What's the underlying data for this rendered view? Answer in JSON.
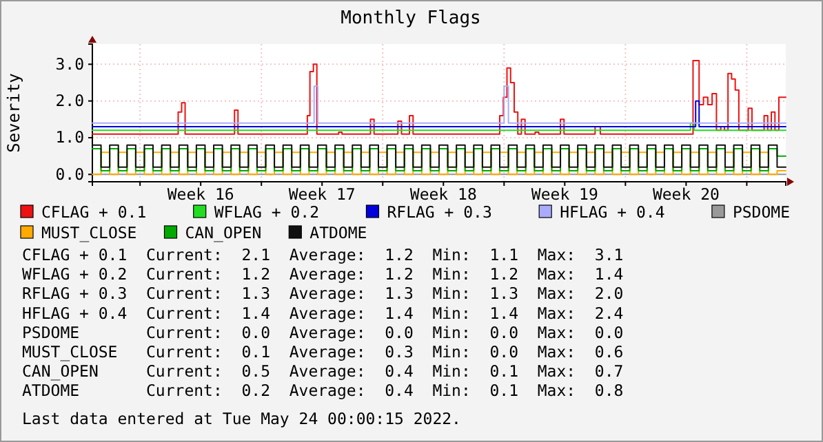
{
  "chart_data": {
    "type": "step",
    "title": "Monthly Flags",
    "ylabel": "Severity",
    "x": [
      "2022-04-15T06:00",
      "2022-04-15T18:00",
      "2022-04-16T06:00",
      "2022-04-16T18:00",
      "2022-04-17T06:00",
      "2022-04-17T18:00",
      "2022-04-18T06:00",
      "2022-04-18T18:00",
      "2022-04-19T06:00",
      "2022-04-19T18:00",
      "2022-04-20T06:00",
      "2022-04-20T18:00",
      "2022-04-21T06:00",
      "2022-04-21T18:00",
      "2022-04-22T06:00",
      "2022-04-22T18:00",
      "2022-04-23T06:00",
      "2022-04-23T18:00",
      "2022-04-24T06:00",
      "2022-04-24T18:00",
      "2022-04-25T06:00",
      "2022-04-25T18:00",
      "2022-04-26T06:00",
      "2022-04-26T18:00",
      "2022-04-27T06:00",
      "2022-04-27T18:00",
      "2022-04-28T06:00",
      "2022-04-28T18:00",
      "2022-04-29T06:00",
      "2022-04-29T18:00",
      "2022-04-30T06:00",
      "2022-04-30T18:00",
      "2022-05-01T06:00",
      "2022-05-01T18:00",
      "2022-05-02T06:00",
      "2022-05-02T18:00",
      "2022-05-03T06:00",
      "2022-05-03T18:00",
      "2022-05-04T06:00",
      "2022-05-04T18:00",
      "2022-05-05T06:00",
      "2022-05-05T18:00",
      "2022-05-06T06:00",
      "2022-05-06T18:00",
      "2022-05-07T06:00",
      "2022-05-07T18:00",
      "2022-05-08T06:00",
      "2022-05-08T18:00",
      "2022-05-09T06:00",
      "2022-05-09T18:00",
      "2022-05-10T06:00",
      "2022-05-10T18:00",
      "2022-05-11T06:00",
      "2022-05-11T18:00",
      "2022-05-12T06:00",
      "2022-05-12T18:00",
      "2022-05-13T06:00",
      "2022-05-13T18:00",
      "2022-05-14T06:00",
      "2022-05-14T18:00",
      "2022-05-15T06:00",
      "2022-05-15T18:00",
      "2022-05-16T06:00",
      "2022-05-16T18:00",
      "2022-05-17T06:00",
      "2022-05-17T18:00",
      "2022-05-18T06:00",
      "2022-05-18T18:00",
      "2022-05-19T06:00",
      "2022-05-19T18:00",
      "2022-05-20T06:00",
      "2022-05-20T18:00",
      "2022-05-21T06:00",
      "2022-05-21T18:00",
      "2022-05-22T06:00",
      "2022-05-22T18:00",
      "2022-05-23T06:00",
      "2022-05-23T18:00",
      "2022-05-24T06:00",
      "2022-05-24T18:00",
      "2022-05-25T06:00"
    ],
    "xlim": [
      "2022-04-15T06:00",
      "2022-05-25T06:00"
    ],
    "ylim": [
      -0.2,
      3.55
    ],
    "xticks": [
      {
        "value": "2022-04-18",
        "label": null
      },
      {
        "value": "2022-04-21T12:00",
        "label": "Week 16"
      },
      {
        "value": "2022-04-25",
        "label": null
      },
      {
        "value": "2022-04-28T12:00",
        "label": "Week 17"
      },
      {
        "value": "2022-05-02",
        "label": null
      },
      {
        "value": "2022-05-05T12:00",
        "label": "Week 18"
      },
      {
        "value": "2022-05-09",
        "label": null
      },
      {
        "value": "2022-05-12T12:00",
        "label": "Week 19"
      },
      {
        "value": "2022-05-16",
        "label": null
      },
      {
        "value": "2022-05-19T12:00",
        "label": "Week 20"
      },
      {
        "value": "2022-05-23",
        "label": null
      }
    ],
    "yticks": [
      {
        "value": 0,
        "label": "0.0"
      },
      {
        "value": 1,
        "label": "1.0"
      },
      {
        "value": 2,
        "label": "2.0"
      },
      {
        "value": 3,
        "label": "3.0"
      }
    ],
    "grid": true,
    "legend": "bottom",
    "line_style": "solid",
    "series": [
      {
        "name": "CFLAG + 0.1",
        "color": "#ee1111",
        "x": [
          "2022-04-15T06:00",
          "2022-04-20T04:48",
          "2022-04-20T09:36",
          "2022-04-20T14:24",
          "2022-04-23T10:48",
          "2022-04-23T15:36",
          "2022-04-27T15:36",
          "2022-04-27T19:12",
          "2022-04-28T00:00",
          "2022-04-28T04:48",
          "2022-04-29T11:00",
          "2022-04-29T15:36",
          "2022-05-01T07:00",
          "2022-05-01T12:00",
          "2022-05-02T21:00",
          "2022-05-03T02:00",
          "2022-05-03T13:00",
          "2022-05-03T18:00",
          "2022-05-08T18:00",
          "2022-05-08T23:00",
          "2022-05-09T04:00",
          "2022-05-09T09:00",
          "2022-05-09T14:00",
          "2022-05-09T19:00",
          "2022-05-10T00:00",
          "2022-05-10T05:00",
          "2022-05-10T19:00",
          "2022-05-11T00:00",
          "2022-05-12T06:00",
          "2022-05-12T11:00",
          "2022-05-14T06:00",
          "2022-05-14T13:12",
          "2022-05-19T21:36",
          "2022-05-20T06:00",
          "2022-05-20T12:00",
          "2022-05-20T18:00",
          "2022-05-21T00:00",
          "2022-05-21T06:00",
          "2022-05-21T12:00",
          "2022-05-21T17:00",
          "2022-05-21T22:00",
          "2022-05-22T03:00",
          "2022-05-22T08:00",
          "2022-05-22T13:00",
          "2022-05-23T02:00",
          "2022-05-23T07:12",
          "2022-05-24T00:00",
          "2022-05-24T05:00",
          "2022-05-24T10:00",
          "2022-05-24T15:00",
          "2022-05-24T20:24",
          "2022-05-25T06:00"
        ],
        "values": [
          1.1,
          1.7,
          1.95,
          1.1,
          1.75,
          1.1,
          1.6,
          2.8,
          3.0,
          1.1,
          1.15,
          1.1,
          1.5,
          1.1,
          1.45,
          1.1,
          1.6,
          1.1,
          1.6,
          2.1,
          2.9,
          2.5,
          1.7,
          1.1,
          1.5,
          1.1,
          1.15,
          1.1,
          1.5,
          1.1,
          1.3,
          1.1,
          3.1,
          1.9,
          2.1,
          1.9,
          2.2,
          1.2,
          1.3,
          1.2,
          2.75,
          2.6,
          2.3,
          1.2,
          1.8,
          1.2,
          1.6,
          1.2,
          1.7,
          1.2,
          2.1,
          2.1
        ]
      },
      {
        "name": "WFLAG + 0.2",
        "color": "#22dd22",
        "x": [
          "2022-04-15T06:00",
          "2022-05-19T18:00",
          "2022-05-19T23:00",
          "2022-05-25T06:00"
        ],
        "values": [
          1.2,
          1.4,
          1.2,
          1.2
        ]
      },
      {
        "name": "RFLAG + 0.3",
        "color": "#0000dd",
        "x": [
          "2022-04-15T06:00",
          "2022-05-20T01:12",
          "2022-05-20T06:00",
          "2022-05-25T06:00"
        ],
        "values": [
          1.3,
          2.0,
          1.3,
          1.3
        ]
      },
      {
        "name": "HFLAG + 0.4",
        "color": "#aaaaff",
        "x": [
          "2022-04-15T06:00",
          "2022-04-28T01:00",
          "2022-04-28T06:00",
          "2022-05-09T00:00",
          "2022-05-09T06:00",
          "2022-05-25T06:00"
        ],
        "values": [
          1.4,
          2.4,
          1.4,
          2.4,
          1.4,
          1.4
        ]
      },
      {
        "name": "PSDOME",
        "color": "#999999",
        "x": [
          "2022-04-15T06:00",
          "2022-05-25T06:00"
        ],
        "values": [
          0.0,
          0.0
        ]
      },
      {
        "name": "MUST_CLOSE",
        "color": "#ffaa00",
        "values": [
          0,
          0.6,
          0,
          0.6,
          0,
          0.6,
          0,
          0.6,
          0,
          0.6,
          0,
          0.6,
          0,
          0.6,
          0,
          0.6,
          0,
          0.6,
          0,
          0.6,
          0,
          0.6,
          0,
          0.6,
          0,
          0.6,
          0,
          0.6,
          0,
          0.6,
          0,
          0.6,
          0,
          0.6,
          0,
          0.6,
          0,
          0.6,
          0,
          0.6,
          0,
          0.6,
          0,
          0.6,
          0,
          0.6,
          0,
          0.6,
          0,
          0.6,
          0,
          0.6,
          0,
          0.6,
          0,
          0.6,
          0,
          0.6,
          0,
          0.6,
          0,
          0.6,
          0,
          0.6,
          0,
          0.6,
          0,
          0.6,
          0,
          0.6,
          0,
          0.6,
          0,
          0.6,
          0,
          0.6,
          0,
          0.6,
          0,
          0.1,
          0.1
        ]
      },
      {
        "name": "CAN_OPEN",
        "color": "#00aa00",
        "values": [
          0.7,
          0.1,
          0.7,
          0.1,
          0.7,
          0.1,
          0.7,
          0.1,
          0.7,
          0.1,
          0.7,
          0.1,
          0.7,
          0.1,
          0.7,
          0.1,
          0.7,
          0.1,
          0.7,
          0.1,
          0.7,
          0.1,
          0.7,
          0.1,
          0.7,
          0.1,
          0.7,
          0.1,
          0.7,
          0.1,
          0.7,
          0.1,
          0.7,
          0.1,
          0.7,
          0.1,
          0.7,
          0.1,
          0.7,
          0.1,
          0.7,
          0.1,
          0.7,
          0.1,
          0.7,
          0.1,
          0.7,
          0.1,
          0.7,
          0.1,
          0.7,
          0.1,
          0.7,
          0.1,
          0.7,
          0.1,
          0.7,
          0.1,
          0.7,
          0.1,
          0.7,
          0.1,
          0.7,
          0.1,
          0.7,
          0.1,
          0.7,
          0.1,
          0.7,
          0.1,
          0.7,
          0.1,
          0.7,
          0.1,
          0.7,
          0.1,
          0.7,
          0.1,
          0.7,
          0.5,
          0.5
        ]
      },
      {
        "name": "ATDOME",
        "color": "#111111",
        "values": [
          0.8,
          0.2,
          0.8,
          0.2,
          0.8,
          0.2,
          0.8,
          0.2,
          0.8,
          0.2,
          0.8,
          0.2,
          0.8,
          0.2,
          0.8,
          0.2,
          0.8,
          0.2,
          0.8,
          0.2,
          0.8,
          0.2,
          0.8,
          0.2,
          0.8,
          0.2,
          0.8,
          0.2,
          0.8,
          0.2,
          0.8,
          0.2,
          0.8,
          0.2,
          0.8,
          0.2,
          0.8,
          0.2,
          0.8,
          0.2,
          0.8,
          0.2,
          0.8,
          0.2,
          0.8,
          0.2,
          0.8,
          0.2,
          0.8,
          0.2,
          0.8,
          0.2,
          0.8,
          0.2,
          0.8,
          0.2,
          0.8,
          0.2,
          0.8,
          0.2,
          0.8,
          0.2,
          0.8,
          0.2,
          0.8,
          0.2,
          0.8,
          0.2,
          0.8,
          0.2,
          0.8,
          0.2,
          0.8,
          0.2,
          0.8,
          0.2,
          0.8,
          0.2,
          0.8,
          0.2,
          0.2
        ]
      }
    ],
    "annotations": [
      "CFLAG + 0.1  Current:  2.1  Average:  1.2  Min:  1.1  Max:  3.1",
      "WFLAG + 0.2  Current:  1.2  Average:  1.2  Min:  1.2  Max:  1.4",
      "RFLAG + 0.3  Current:  1.3  Average:  1.3  Min:  1.3  Max:  2.0",
      "HFLAG + 0.4  Current:  1.4  Average:  1.4  Min:  1.4  Max:  2.4",
      "PSDOME       Current:  0.0  Average:  0.0  Min:  0.0  Max:  0.0",
      "MUST_CLOSE   Current:  0.1  Average:  0.3  Min:  0.0  Max:  0.6",
      "CAN_OPEN     Current:  0.5  Average:  0.4  Min:  0.1  Max:  0.7",
      "ATDOME       Current:  0.2  Average:  0.4  Min:  0.1  Max:  0.8",
      "Last data entered at Tue May 24 00:00:15 2022."
    ]
  }
}
